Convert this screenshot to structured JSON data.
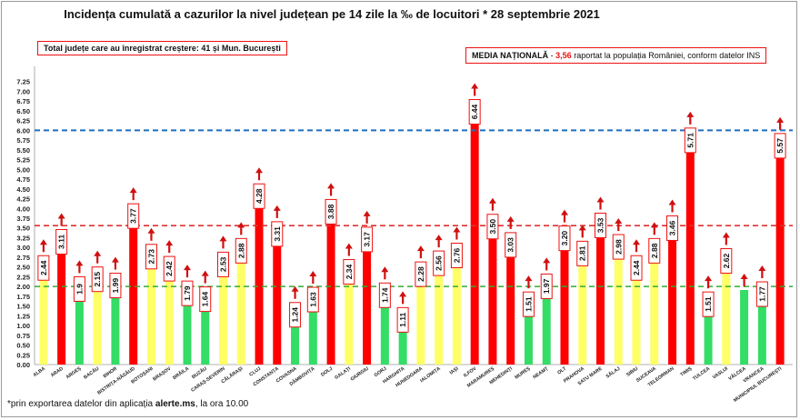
{
  "title": "Incidența cumulată a cazurilor la nivel județean pe 14 zile la ‰ de locuitori * 28 septembrie 2021",
  "note_left": "Total județe care au înregistrat creștere:  41 și Mun. București",
  "note_right": {
    "label": "MEDIA NAȚIONALĂ",
    "dash": " - ",
    "value": "3,56",
    "rest": " raportat la populația României, conform datelor INS"
  },
  "footnote": {
    "prefix": "*prin exportarea datelor din aplicația ",
    "app": "alerte.ms",
    "suffix": ", la ora 10.00"
  },
  "colors": {
    "red": "#ff0000",
    "yellow": "#ffff66",
    "green": "#33dd66",
    "blue_line": "#1f6fc0",
    "red_line": "#e03030",
    "green_line": "#33aa33",
    "arrow": "#d01010"
  },
  "chart_data": {
    "type": "bar",
    "ylim": [
      0,
      7.5
    ],
    "yticks": [
      "0.00",
      "0.25",
      "0.50",
      "0.75",
      "1.00",
      "1.25",
      "1.50",
      "1.75",
      "2.00",
      "2.25",
      "2.50",
      "2.75",
      "3.00",
      "3.25",
      "3.50",
      "3.75",
      "4.00",
      "4.25",
      "4.50",
      "4.75",
      "5.00",
      "5.25",
      "5.50",
      "5.75",
      "6.00",
      "6.25",
      "6.50",
      "6.75",
      "7.00",
      "7.25"
    ],
    "reference_lines": [
      {
        "value": 6.0,
        "color": "blue"
      },
      {
        "value": 3.56,
        "color": "red"
      },
      {
        "value": 2.0,
        "color": "green"
      }
    ],
    "categories": [
      "ALBA",
      "ARAD",
      "ARGEȘ",
      "BACĂU",
      "BIHOR",
      "BISTRIȚA-NĂSĂUD",
      "BOTOȘANI",
      "BRAȘOV",
      "BRĂILA",
      "BUZĂU",
      "CARAȘ-SEVERIN",
      "CĂLĂRAȘI",
      "CLUJ",
      "CONSTANȚA",
      "COVASNA",
      "DÂMBOVIȚA",
      "DOLJ",
      "GALAȚI",
      "GIURGIU",
      "GORJ",
      "HARGHITA",
      "HUNEDOARA",
      "IALOMIȚA",
      "IAȘI",
      "ILFOV",
      "MARAMUREȘ",
      "MEHEDINȚI",
      "MUREȘ",
      "NEAMȚ",
      "OLT",
      "PRAHOVA",
      "SATU MARE",
      "SĂLAJ",
      "SIBIU",
      "SUCEAVA",
      "TELEORMAN",
      "TIMIȘ",
      "TULCEA",
      "VASLUI",
      "VÂLCEA",
      "VRANCEA",
      "MUNICIPIUL BUCUREȘTI"
    ],
    "values": [
      2.44,
      3.11,
      1.9,
      2.15,
      1.99,
      3.77,
      2.73,
      2.42,
      1.79,
      1.64,
      2.53,
      2.88,
      4.28,
      3.31,
      1.24,
      1.63,
      3.88,
      2.34,
      3.17,
      1.74,
      1.11,
      2.28,
      2.56,
      2.76,
      6.44,
      3.5,
      3.03,
      1.51,
      1.97,
      3.2,
      2.81,
      3.53,
      2.98,
      2.44,
      2.88,
      3.46,
      5.71,
      1.51,
      2.62,
      1.91,
      1.77,
      5.57
    ],
    "labels": [
      "2.44",
      "3.11",
      "1.9",
      "2.15",
      "1.99",
      "3.77",
      "2.73",
      "2.42",
      "1.79",
      "1.64",
      "2.53",
      "2.88",
      "4.28",
      "3.31",
      "1.24",
      "1.63",
      "3.88",
      "2.34",
      "3.17",
      "1.74",
      "1.11",
      "2.28",
      "2.56",
      "2.76",
      "6.44",
      "3.50",
      "3.03",
      "1.51",
      "1.97",
      "3.20",
      "2.81",
      "3.53",
      "2.98",
      "2.44",
      "2.88",
      "3.46",
      "5.71",
      "1.51",
      "2.62",
      "1.91",
      "1.77",
      "5.57"
    ],
    "bar_colors": [
      "yellow",
      "red",
      "green",
      "yellow",
      "green",
      "red",
      "yellow",
      "yellow",
      "green",
      "green",
      "yellow",
      "yellow",
      "red",
      "red",
      "green",
      "green",
      "red",
      "yellow",
      "red",
      "green",
      "green",
      "yellow",
      "yellow",
      "yellow",
      "red",
      "red",
      "red",
      "green",
      "green",
      "red",
      "yellow",
      "red",
      "yellow",
      "yellow",
      "yellow",
      "red",
      "red",
      "green",
      "yellow",
      "green",
      "green",
      "red"
    ],
    "labeled": [
      true,
      true,
      true,
      true,
      true,
      true,
      true,
      true,
      true,
      true,
      true,
      true,
      true,
      true,
      true,
      true,
      true,
      true,
      true,
      true,
      true,
      true,
      true,
      true,
      true,
      true,
      true,
      true,
      true,
      true,
      true,
      true,
      true,
      true,
      true,
      true,
      true,
      true,
      true,
      false,
      true,
      true
    ],
    "trend_up": [
      true,
      true,
      true,
      true,
      true,
      true,
      true,
      true,
      true,
      true,
      true,
      true,
      true,
      true,
      true,
      true,
      true,
      true,
      true,
      true,
      true,
      true,
      true,
      true,
      true,
      true,
      true,
      true,
      true,
      true,
      true,
      true,
      true,
      true,
      true,
      true,
      true,
      true,
      true,
      true,
      true,
      true
    ]
  }
}
